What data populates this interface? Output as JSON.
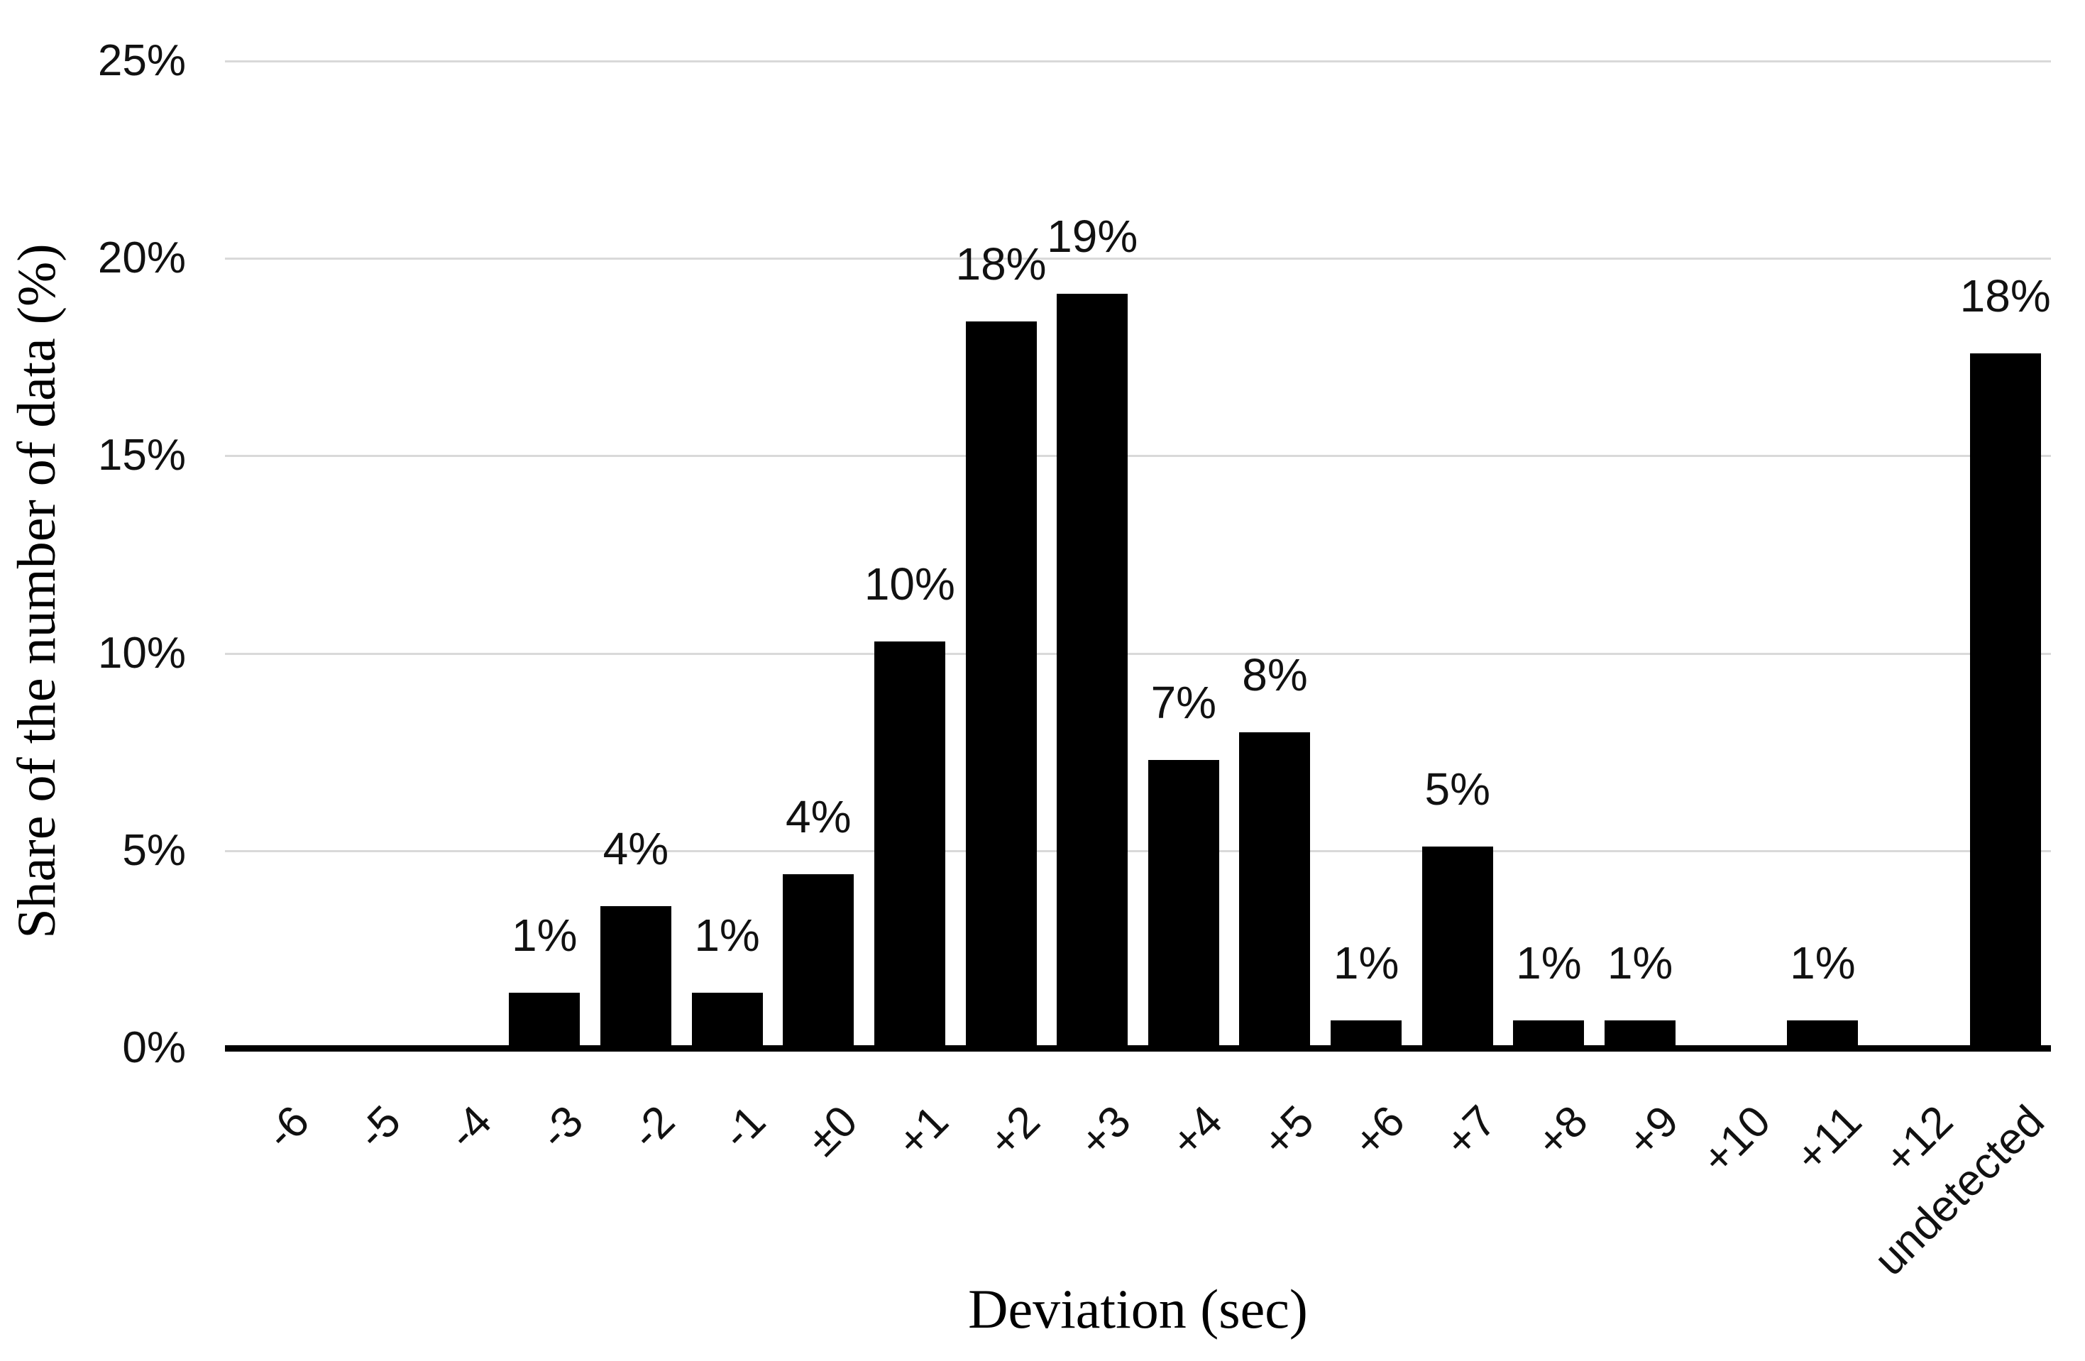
{
  "chart_data": {
    "type": "bar",
    "title": "",
    "xlabel": "Deviation (sec)",
    "ylabel": "Share of the number of data (%)",
    "categories": [
      "-6",
      "-5",
      "-4",
      "-3",
      "-2",
      "-1",
      "±0",
      "+1",
      "+2",
      "+3",
      "+4",
      "+5",
      "+6",
      "+7",
      "+8",
      "+9",
      "+10",
      "+11",
      "+12",
      "undetected"
    ],
    "values": [
      0,
      0,
      0,
      1.4,
      3.6,
      1.4,
      4.4,
      10.3,
      18.4,
      19.1,
      7.3,
      8.0,
      0.7,
      5.1,
      0.7,
      0.7,
      0,
      0.7,
      0,
      17.6
    ],
    "bar_labels": [
      "",
      "",
      "",
      "1%",
      "4%",
      "1%",
      "4%",
      "10%",
      "18%",
      "19%",
      "7%",
      "8%",
      "1%",
      "5%",
      "1%",
      "1%",
      "",
      "1%",
      "",
      "18%"
    ],
    "y_ticks": [
      {
        "label": "25%",
        "value": 25
      },
      {
        "label": "20%",
        "value": 20
      },
      {
        "label": "15%",
        "value": 15
      },
      {
        "label": "10%",
        "value": 10
      },
      {
        "label": "5%",
        "value": 5
      },
      {
        "label": "0%",
        "value": 0
      }
    ],
    "ylim": [
      0,
      25
    ],
    "grid": true,
    "legend": "none",
    "bar_color": "#000000",
    "gridline_color": "#d9d9d9",
    "axis_color": "#000000"
  }
}
